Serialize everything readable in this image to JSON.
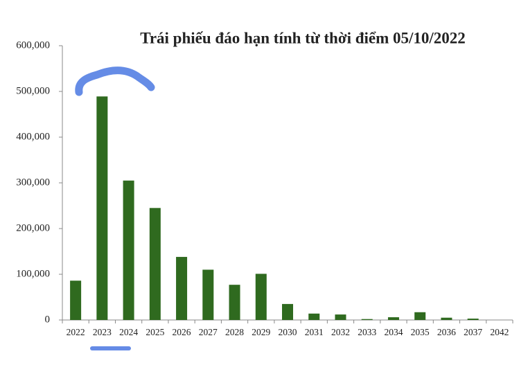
{
  "chart_data": {
    "type": "bar",
    "title": "Trái phiếu đáo hạn tính từ thời điểm 05/10/2022",
    "categories": [
      "2022",
      "2023",
      "2024",
      "2025",
      "2026",
      "2027",
      "2028",
      "2029",
      "2030",
      "2031",
      "2032",
      "2033",
      "2034",
      "2035",
      "2036",
      "2037",
      "2042"
    ],
    "values": [
      86000,
      489000,
      305000,
      245000,
      138000,
      110000,
      77000,
      101000,
      35000,
      14000,
      12000,
      2000,
      6000,
      17000,
      5000,
      3000,
      0
    ],
    "color": "#2f6a1f",
    "ylim": [
      0,
      600000
    ],
    "yticks": [
      0,
      {
        "value": 100000,
        "label": "100,000"
      },
      {
        "value": 200000,
        "label": "200,000"
      },
      {
        "value": 300000,
        "label": "300,000"
      },
      {
        "value": 400000,
        "label": "400,000"
      },
      {
        "value": 500000,
        "label": "500,000"
      },
      {
        "value": 600000,
        "label": "600,000"
      }
    ],
    "grid": false
  }
}
